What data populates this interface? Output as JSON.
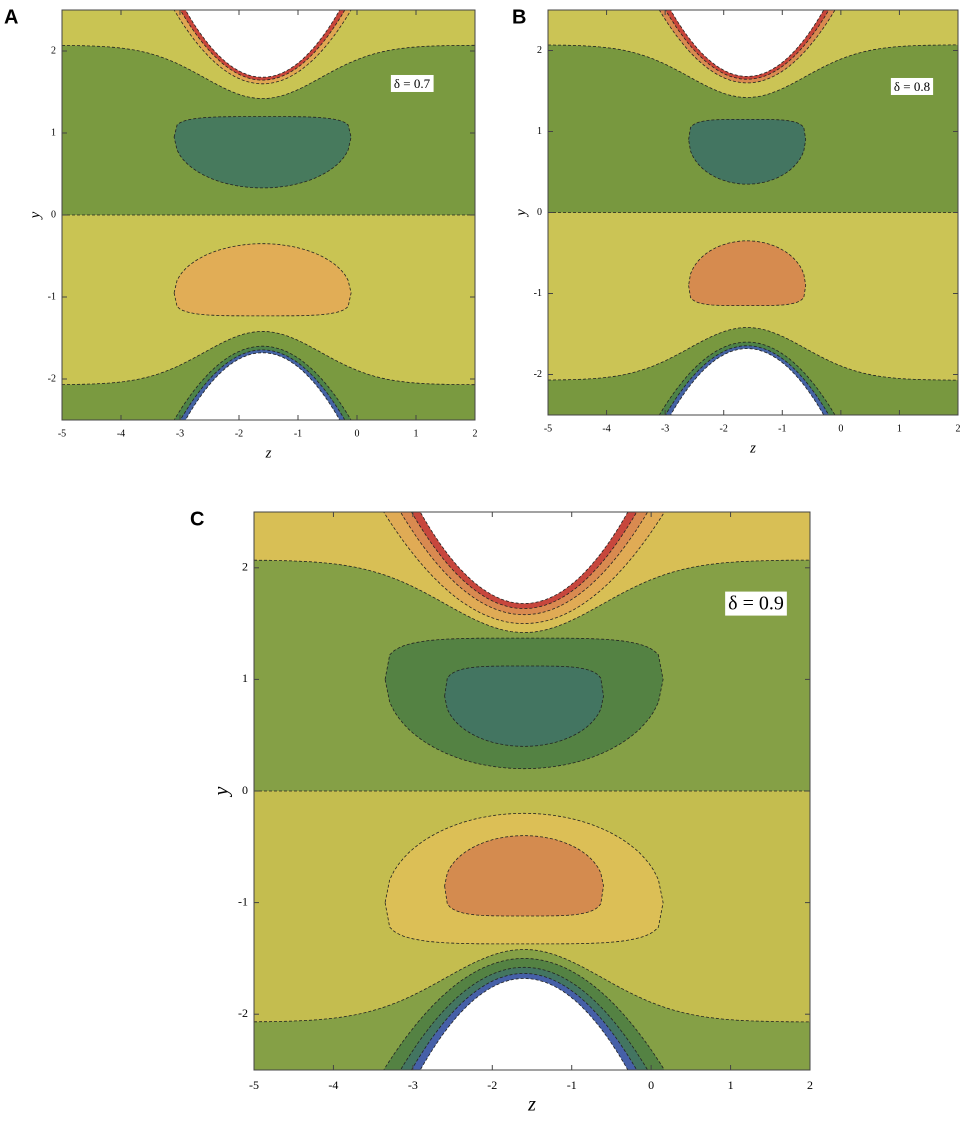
{
  "panels": [
    {
      "label": "A",
      "chart_data": {
        "type": "contour",
        "annotation": "δ = 0.7",
        "xlabel": "z",
        "ylabel": "y",
        "xlim": [
          -5,
          2
        ],
        "ylim": [
          -2.5,
          2.5
        ],
        "xticks": [
          -5,
          -4,
          -3,
          -2,
          -1,
          0,
          1,
          2
        ],
        "yticks": [
          -2,
          -1,
          0,
          1,
          2
        ]
      }
    },
    {
      "label": "B",
      "chart_data": {
        "type": "contour",
        "annotation": "δ = 0.8",
        "xlabel": "z",
        "ylabel": "y",
        "xlim": [
          -5,
          2
        ],
        "ylim": [
          -2.5,
          2.5
        ],
        "xticks": [
          -5,
          -4,
          -3,
          -2,
          -1,
          0,
          1,
          2
        ],
        "yticks": [
          -2,
          -1,
          0,
          1,
          2
        ]
      }
    },
    {
      "label": "C",
      "chart_data": {
        "type": "contour",
        "annotation": "δ = 0.9",
        "xlabel": "z",
        "ylabel": "y",
        "xlim": [
          -5,
          2
        ],
        "ylim": [
          -2.5,
          2.5
        ],
        "xticks": [
          -5,
          -4,
          -3,
          -2,
          -1,
          0,
          1,
          2
        ],
        "yticks": [
          -2,
          -1,
          0,
          1,
          2
        ]
      }
    }
  ]
}
